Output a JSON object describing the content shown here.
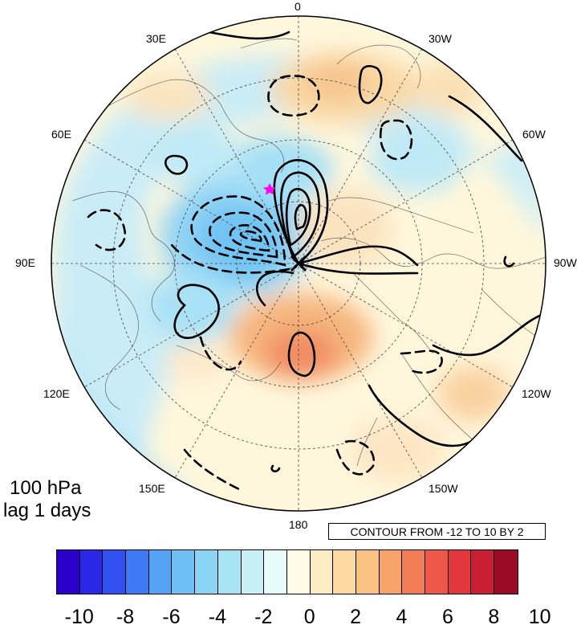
{
  "panel": {
    "level": "100 hPa",
    "lag": "lag 1 days"
  },
  "contour_info": "CONTOUR FROM -12 TO 10 BY 2",
  "longitude_labels": {
    "top": "0",
    "bottom": "180",
    "left": "90E",
    "right": "90W",
    "ne": "30W",
    "nw": "30E",
    "ene": "60W",
    "wnw": "60E",
    "wsw": "120E",
    "ese": "120W",
    "sw": "150E",
    "se": "150W"
  },
  "colorbar": {
    "ticks": [
      "-10",
      "-8",
      "-6",
      "-4",
      "-2",
      "0",
      "2",
      "4",
      "6",
      "8",
      "10"
    ],
    "colors": [
      "#2c00cc",
      "#2a27e6",
      "#3050f0",
      "#3f7af5",
      "#55a3f7",
      "#6ec0f5",
      "#8ad5f5",
      "#a9e4f5",
      "#c8f0f7",
      "#e8fbfb",
      "#fffbe6",
      "#fdedc3",
      "#fcd9a0",
      "#f9c283",
      "#f6a269",
      "#f27e58",
      "#ee5848",
      "#e2373d",
      "#c91e33",
      "#9b0b26"
    ]
  },
  "marker_color": "#ff00ff"
}
